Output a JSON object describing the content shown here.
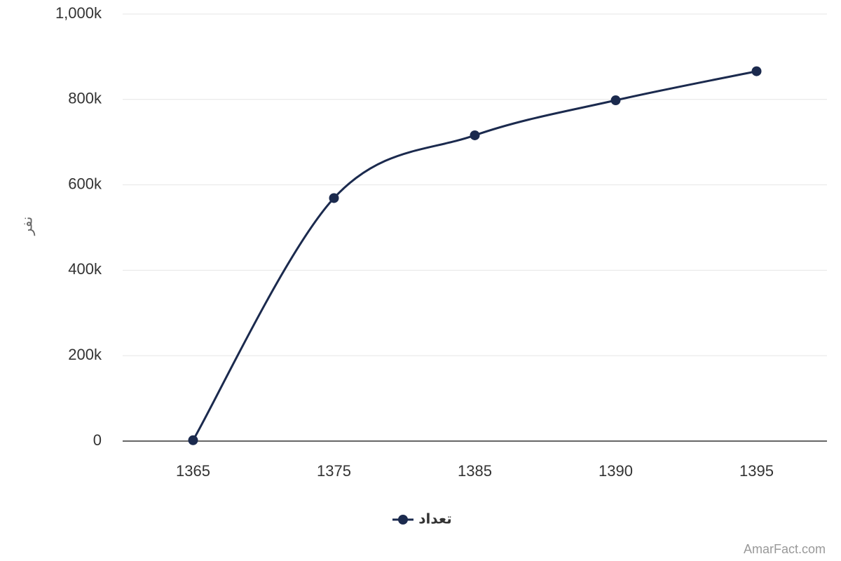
{
  "chart_data": {
    "type": "line",
    "y_label": "نفر",
    "categories": [
      "1365",
      "1375",
      "1385",
      "1390",
      "1395"
    ],
    "series": [
      {
        "name": "تعداد",
        "color": "#1b2a4e",
        "values": [
          2000,
          569000,
          716000,
          798000,
          866000
        ]
      }
    ],
    "ylim": [
      0,
      1000000
    ],
    "yticks": [
      0,
      {
        "value": 200000,
        "label": "200k"
      },
      {
        "value": 400000,
        "label": "400k"
      },
      {
        "value": 600000,
        "label": "600k"
      },
      {
        "value": 800000,
        "label": "800k"
      },
      {
        "value": 1000000,
        "label": "1,000k"
      }
    ],
    "grid": true,
    "legend": "bottom",
    "credit": "AmarFact.com"
  }
}
